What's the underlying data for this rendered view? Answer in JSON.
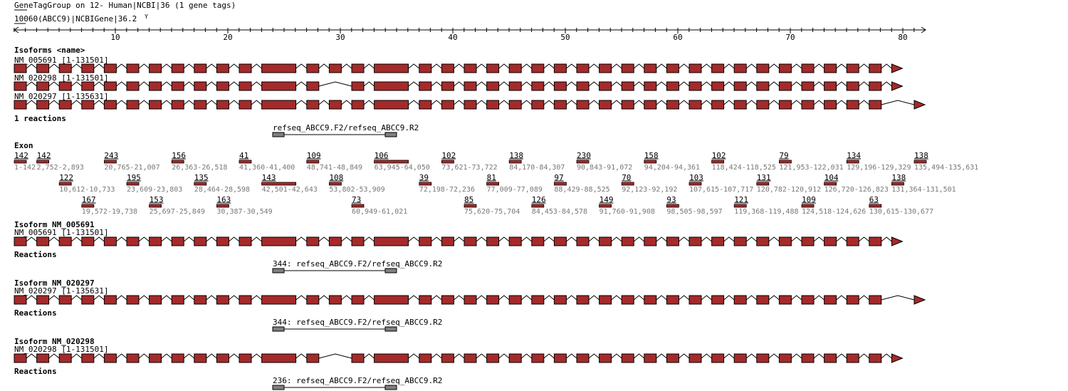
{
  "header": {
    "title": "GeneTagGroup on 12- Human|NCBI|36 (1 gene tags)",
    "gene": "10060(ABCC9)|NCBIGene|36.2",
    "gene_menu_icon": "dropdown-y-icon"
  },
  "axis": {
    "min": 1,
    "max": 82,
    "major_step": 10,
    "labels": [
      "10",
      "20",
      "30",
      "40",
      "50",
      "60",
      "70",
      "80"
    ]
  },
  "colors": {
    "exon": "#a52a2a",
    "primer": "#808080",
    "line": "#000000"
  },
  "overview": {
    "title": "Isoforms <name>",
    "isoforms": [
      {
        "label": "NM_005691 [1-131501]",
        "last": 39,
        "skip": []
      },
      {
        "label": "NM_020298 [1-131501]",
        "last": 39,
        "skip": [
          14
        ]
      },
      {
        "label": "NM_020297 [1-135631]",
        "last": 40,
        "skip": []
      }
    ],
    "reactions_title": "1 reactions",
    "reaction_label": "refseq_ABCC9.F2/refseq_ABCC9.R2"
  },
  "exon_section": {
    "title": "Exon",
    "exons": [
      {
        "slot": 0,
        "row": 1,
        "len": "142",
        "range": "1-142"
      },
      {
        "slot": 1,
        "row": 1,
        "len": "142",
        "range": "2,752-2,893"
      },
      {
        "slot": 2,
        "row": 2,
        "len": "122",
        "range": "10,612-10,733"
      },
      {
        "slot": 3,
        "row": 3,
        "len": "167",
        "range": "19,572-19,738"
      },
      {
        "slot": 4,
        "row": 1,
        "len": "243",
        "range": "20,765-21,007"
      },
      {
        "slot": 5,
        "row": 2,
        "len": "195",
        "range": "23,609-23,803"
      },
      {
        "slot": 6,
        "row": 3,
        "len": "153",
        "range": "25,697-25,849"
      },
      {
        "slot": 7,
        "row": 1,
        "len": "156",
        "range": "26,363-26,518"
      },
      {
        "slot": 8,
        "row": 2,
        "len": "135",
        "range": "28,464-28,598"
      },
      {
        "slot": 9,
        "row": 3,
        "len": "163",
        "range": "30,387-30,549"
      },
      {
        "slot": 10,
        "row": 1,
        "len": "41",
        "range": "41,360-41,400"
      },
      {
        "slot": 11,
        "row": 2,
        "len": "143",
        "range": "42,501-42,643",
        "wide": true
      },
      {
        "slot": 13,
        "row": 1,
        "len": "109",
        "range": "48,741-48,849"
      },
      {
        "slot": 14,
        "row": 2,
        "len": "108",
        "range": "53,802-53,909"
      },
      {
        "slot": 15,
        "row": 3,
        "len": "73",
        "range": "60,949-61,021"
      },
      {
        "slot": 16,
        "row": 1,
        "len": "106",
        "range": "63,945-64,050",
        "wide": true
      },
      {
        "slot": 18,
        "row": 2,
        "len": "39",
        "range": "72,198-72,236"
      },
      {
        "slot": 19,
        "row": 1,
        "len": "102",
        "range": "73,621-73,722"
      },
      {
        "slot": 20,
        "row": 3,
        "len": "85",
        "range": "75,620-75,704"
      },
      {
        "slot": 21,
        "row": 2,
        "len": "81",
        "range": "77,009-77,089"
      },
      {
        "slot": 22,
        "row": 1,
        "len": "138",
        "range": "84,170-84,307"
      },
      {
        "slot": 23,
        "row": 3,
        "len": "126",
        "range": "84,453-84,578"
      },
      {
        "slot": 24,
        "row": 2,
        "len": "97",
        "range": "88,429-88,525"
      },
      {
        "slot": 25,
        "row": 1,
        "len": "230",
        "range": "90,843-91,072"
      },
      {
        "slot": 26,
        "row": 3,
        "len": "149",
        "range": "91,760-91,908"
      },
      {
        "slot": 27,
        "row": 2,
        "len": "70",
        "range": "92,123-92,192"
      },
      {
        "slot": 28,
        "row": 1,
        "len": "158",
        "range": "94,204-94,361"
      },
      {
        "slot": 29,
        "row": 3,
        "len": "93",
        "range": "98,505-98,597"
      },
      {
        "slot": 30,
        "row": 2,
        "len": "103",
        "range": "107,615-107,717"
      },
      {
        "slot": 31,
        "row": 1,
        "len": "102",
        "range": "118,424-118,525"
      },
      {
        "slot": 32,
        "row": 3,
        "len": "121",
        "range": "119,368-119,488"
      },
      {
        "slot": 33,
        "row": 2,
        "len": "131",
        "range": "120,782-120,912"
      },
      {
        "slot": 34,
        "row": 1,
        "len": "79",
        "range": "121,953-122,031"
      },
      {
        "slot": 35,
        "row": 3,
        "len": "109",
        "range": "124,518-124,626"
      },
      {
        "slot": 36,
        "row": 2,
        "len": "104",
        "range": "126,720-126,823"
      },
      {
        "slot": 37,
        "row": 1,
        "len": "134",
        "range": "129,196-129,329"
      },
      {
        "slot": 38,
        "row": 3,
        "len": "63",
        "range": "130,615-130,677"
      },
      {
        "slot": 39,
        "row": 2,
        "len": "138",
        "range": "131,364-131,501"
      },
      {
        "slot": 40,
        "row": 1,
        "len": "138",
        "range": "135,494-135,631"
      }
    ]
  },
  "details": [
    {
      "title": "Isoform NM_005691",
      "label": "NM_005691 [1-131501]",
      "last": 39,
      "skip": [],
      "reactions_title": "Reactions",
      "reaction": "344: refseq_ABCC9.F2/refseq_ABCC9.R2"
    },
    {
      "title": "Isoform NM_020297",
      "label": "NM_020297 [1-135631]",
      "last": 40,
      "skip": [],
      "reactions_title": "Reactions",
      "reaction": "344: refseq_ABCC9.F2/refseq_ABCC9.R2"
    },
    {
      "title": "Isoform NM_020298",
      "label": "NM_020298 [1-131501]",
      "last": 39,
      "skip": [
        14
      ],
      "reactions_title": "Reactions",
      "reaction": "236: refseq_ABCC9.F2/refseq_ABCC9.R2"
    }
  ]
}
